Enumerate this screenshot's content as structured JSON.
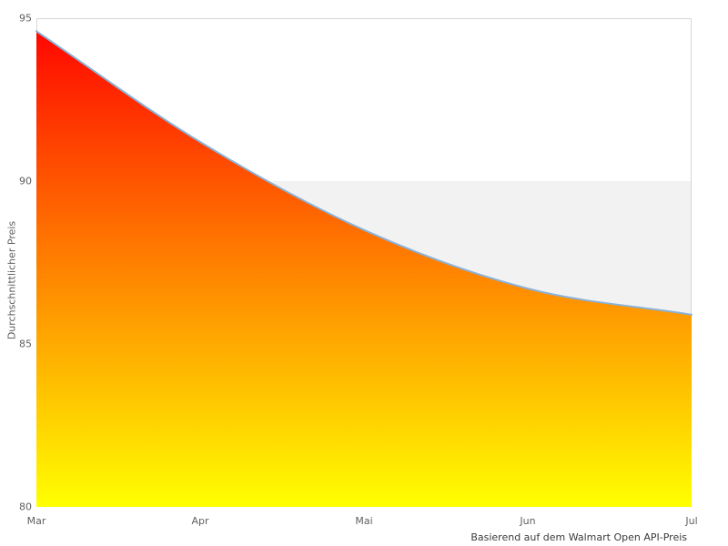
{
  "chart_data": {
    "type": "area",
    "title": "",
    "categories": [
      "Mar",
      "Apr",
      "Mai",
      "Jun",
      "Jul"
    ],
    "x_tick_labels": [
      "Mar",
      "Apr",
      "Mai",
      "Jun",
      "Jul"
    ],
    "values": [
      94.6,
      91.2,
      88.5,
      86.7,
      85.9
    ],
    "xlabel": "",
    "ylabel": "Durchschnittlicher Preis",
    "caption": "Basierend auf dem Walmart Open API-Preis",
    "ylim": [
      80,
      95
    ],
    "y_ticks": [
      95,
      90,
      85,
      80
    ],
    "y_tick_labels": [
      "95",
      "90",
      "85",
      "80"
    ],
    "band": {
      "from": 85,
      "to": 90,
      "color": "#f2f2f2"
    },
    "grid": false,
    "legend": "none",
    "colors": {
      "area_gradient_top": "#ff0000",
      "area_gradient_bottom": "#ffff00",
      "line": "#8ab2d8",
      "plot_border": "#d6d6d6",
      "tick_text": "#606060",
      "caption_text": "#3a3a3a",
      "background": "#ffffff"
    }
  }
}
